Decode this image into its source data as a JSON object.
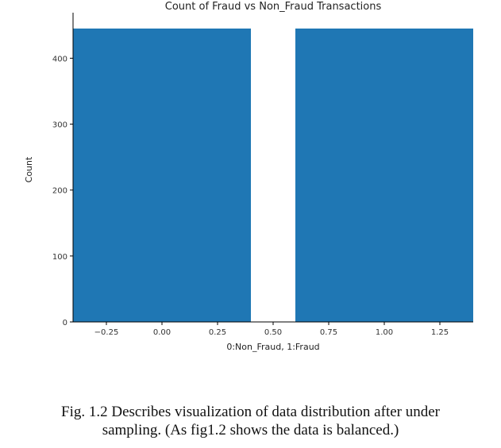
{
  "chart_data": {
    "type": "bar",
    "title": "Count of Fraud vs Non_Fraud Transactions",
    "xlabel": "0:Non_Fraud, 1:Fraud",
    "ylabel": "Count",
    "categories": [
      0,
      1
    ],
    "values": [
      445,
      445
    ],
    "bar_width": 0.8,
    "bar_color": "#1f77b4",
    "xlim": [
      -0.4,
      1.4
    ],
    "ylim": [
      0,
      445
    ],
    "xticks": [
      "−0.25",
      "0.00",
      "0.25",
      "0.50",
      "0.75",
      "1.00",
      "1.25"
    ],
    "xtick_values": [
      -0.25,
      0.0,
      0.25,
      0.5,
      0.75,
      1.0,
      1.25
    ],
    "yticks": [
      "0",
      "100",
      "200",
      "300",
      "400"
    ],
    "ytick_values": [
      0,
      100,
      200,
      300,
      400
    ],
    "grid": false,
    "legend": "none"
  },
  "caption": {
    "line1": "Fig. 1.2 Describes visualization of data distribution after under",
    "line2": "sampling. (As fig1.2 shows the data is balanced.)"
  }
}
